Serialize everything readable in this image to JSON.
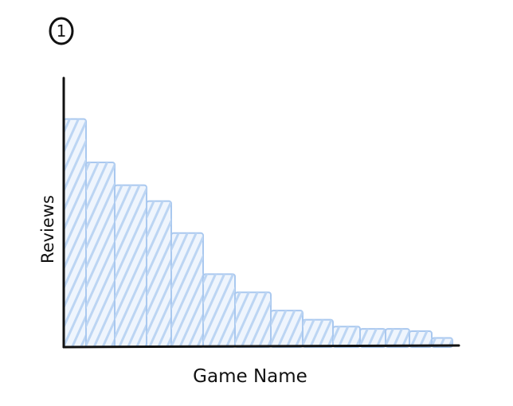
{
  "figure_label": "1",
  "colors": {
    "bar_fill": "#dce9fa",
    "bar_stroke": "#a9c8ef",
    "hatch": "#bcd5f3",
    "axis": "#111111",
    "ink": "#111111"
  },
  "chart_data": {
    "type": "bar",
    "xlabel": "Game Name",
    "ylabel": "Reviews",
    "categories": [
      "",
      "",
      "",
      "",
      "",
      "",
      "",
      "",
      "",
      "",
      "",
      "",
      "",
      ""
    ],
    "values": [
      100,
      81,
      71,
      64,
      50,
      32,
      24,
      16,
      12,
      9,
      8,
      8,
      7,
      4
    ],
    "ylim": [
      0,
      118
    ],
    "grid": false,
    "legend": "none",
    "hatched": true
  }
}
